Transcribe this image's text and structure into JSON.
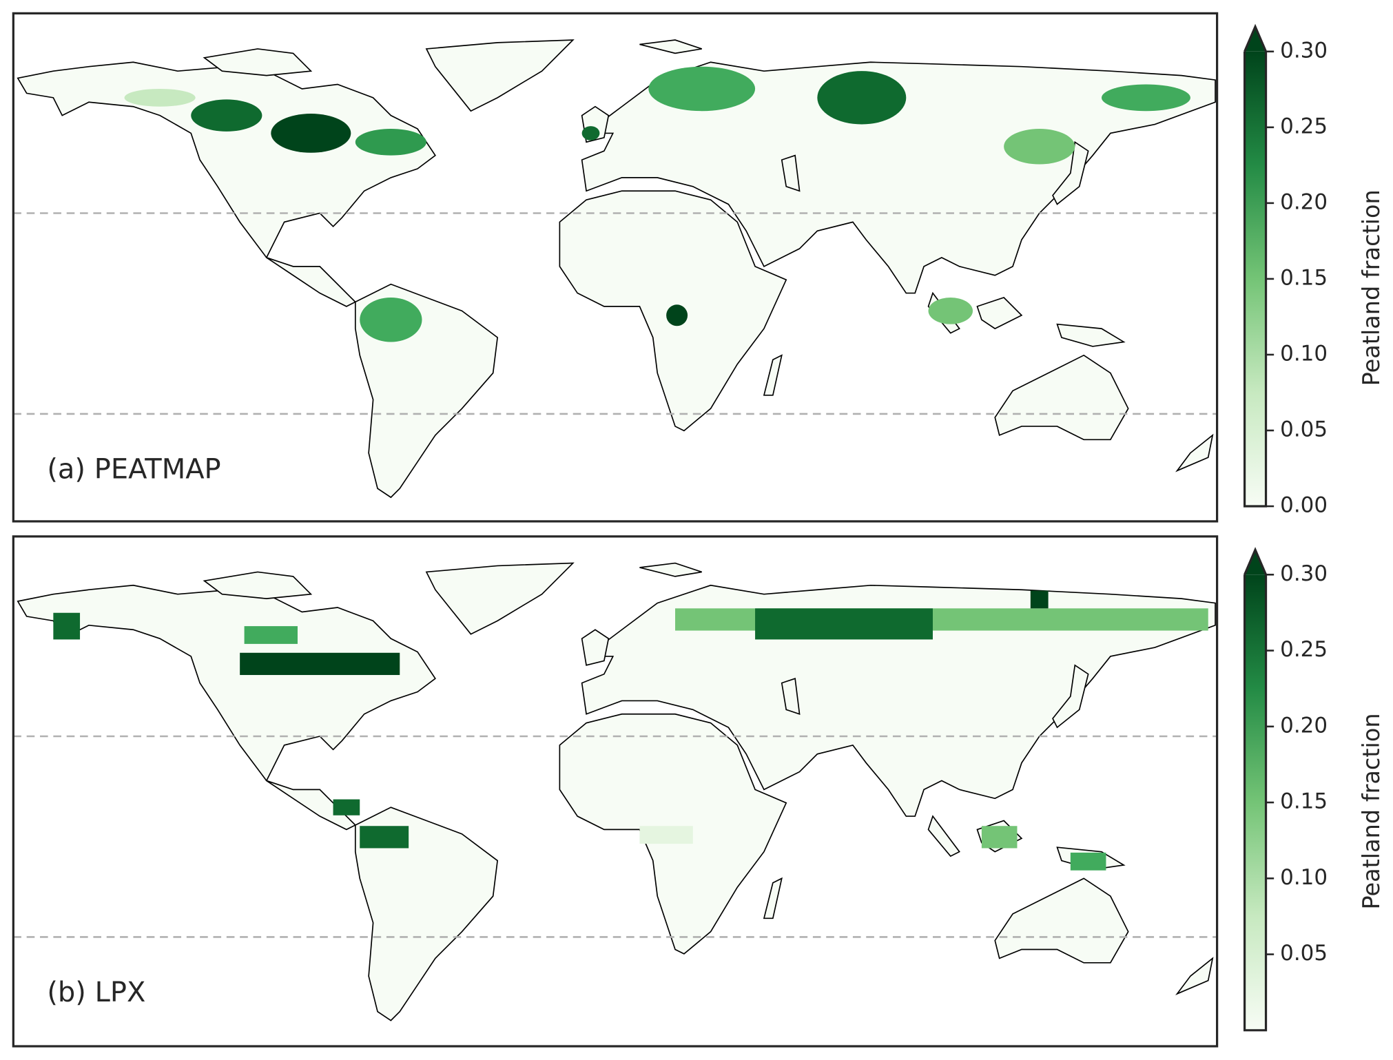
{
  "panels": [
    {
      "label": "(a) PEATMAP",
      "colorbar": {
        "label": "Peatland fraction",
        "clim": [
          0,
          0.3
        ],
        "ticks": [
          {
            "value": 0,
            "label": "0.00"
          },
          {
            "value": 0.05,
            "label": "0.05"
          },
          {
            "value": 0.1,
            "label": "0.10"
          },
          {
            "value": 0.15,
            "label": "0.15"
          },
          {
            "value": 0.2,
            "label": "0.20"
          },
          {
            "value": 0.25,
            "label": "0.25"
          },
          {
            "value": 0.3,
            "label": "0.30"
          }
        ]
      }
    },
    {
      "label": "(b) LPX",
      "colorbar": {
        "label": "Peatland fraction",
        "clim": [
          0,
          0.3
        ],
        "ticks": [
          {
            "value": 0.05,
            "label": "0.05"
          },
          {
            "value": 0.1,
            "label": "0.10"
          },
          {
            "value": 0.15,
            "label": "0.15"
          },
          {
            "value": 0.2,
            "label": "0.20"
          },
          {
            "value": 0.25,
            "label": "0.25"
          },
          {
            "value": 0.3,
            "label": "0.30"
          }
        ]
      }
    }
  ]
}
